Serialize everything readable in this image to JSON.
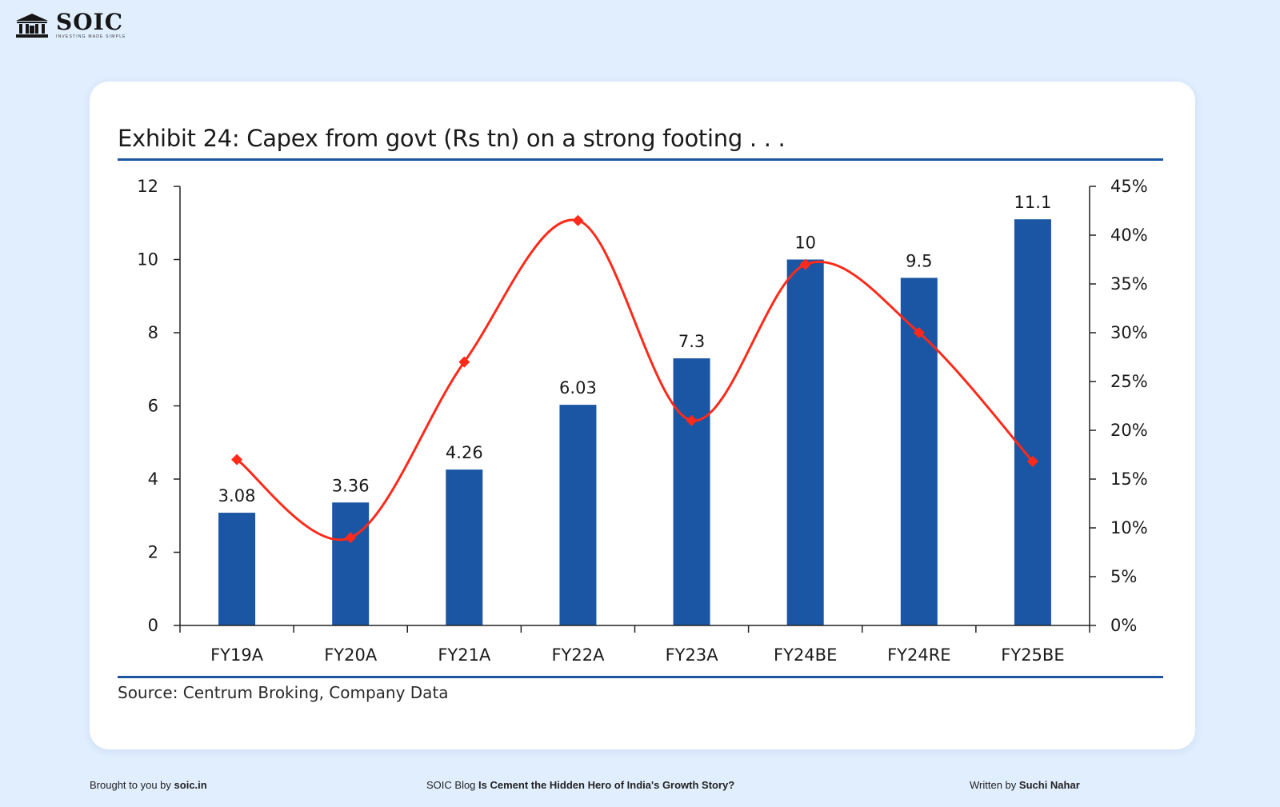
{
  "brand": {
    "name": "SOIC",
    "tagline": "INVESTING MADE SIMPLE"
  },
  "footer": {
    "left_prefix": "Brought to you by",
    "left_link": "soic.in",
    "mid_prefix": "SOIC Blog",
    "mid_title": "Is Cement the Hidden Hero of India's Growth Story?",
    "right_prefix": "Written by",
    "right_author": "Suchi Nahar"
  },
  "chart_data": {
    "type": "bar",
    "title": "Exhibit 24: Capex from govt (Rs tn) on a strong footing . . .",
    "source": "Source: Centrum Broking, Company Data",
    "categories": [
      "FY19A",
      "FY20A",
      "FY21A",
      "FY22A",
      "FY23A",
      "FY24BE",
      "FY24RE",
      "FY25BE"
    ],
    "series": [
      {
        "type": "bar",
        "axis": "left",
        "values": [
          3.08,
          3.36,
          4.26,
          6.03,
          7.3,
          10,
          9.5,
          11.1
        ],
        "data_labels": [
          "3.08",
          "3.36",
          "4.26",
          "6.03",
          "7.3",
          "10",
          "9.5",
          "11.1"
        ],
        "color": "#1a56a4"
      },
      {
        "type": "line",
        "axis": "right",
        "values": [
          17,
          9,
          27,
          41.5,
          21,
          37,
          30,
          16.8
        ],
        "color": "#ff2a1a"
      }
    ],
    "y_left": {
      "min": 0,
      "max": 12,
      "ticks": [
        0,
        2,
        4,
        6,
        8,
        10,
        12
      ],
      "tick_labels": [
        "0",
        "2",
        "4",
        "6",
        "8",
        "10",
        "12"
      ]
    },
    "y_right": {
      "min": 0,
      "max": 45,
      "ticks": [
        0,
        5,
        10,
        15,
        20,
        25,
        30,
        35,
        40,
        45
      ],
      "tick_labels": [
        "0%",
        "5%",
        "10%",
        "15%",
        "20%",
        "25%",
        "30%",
        "35%",
        "40%",
        "45%"
      ]
    },
    "grid": false,
    "legend": "none"
  }
}
